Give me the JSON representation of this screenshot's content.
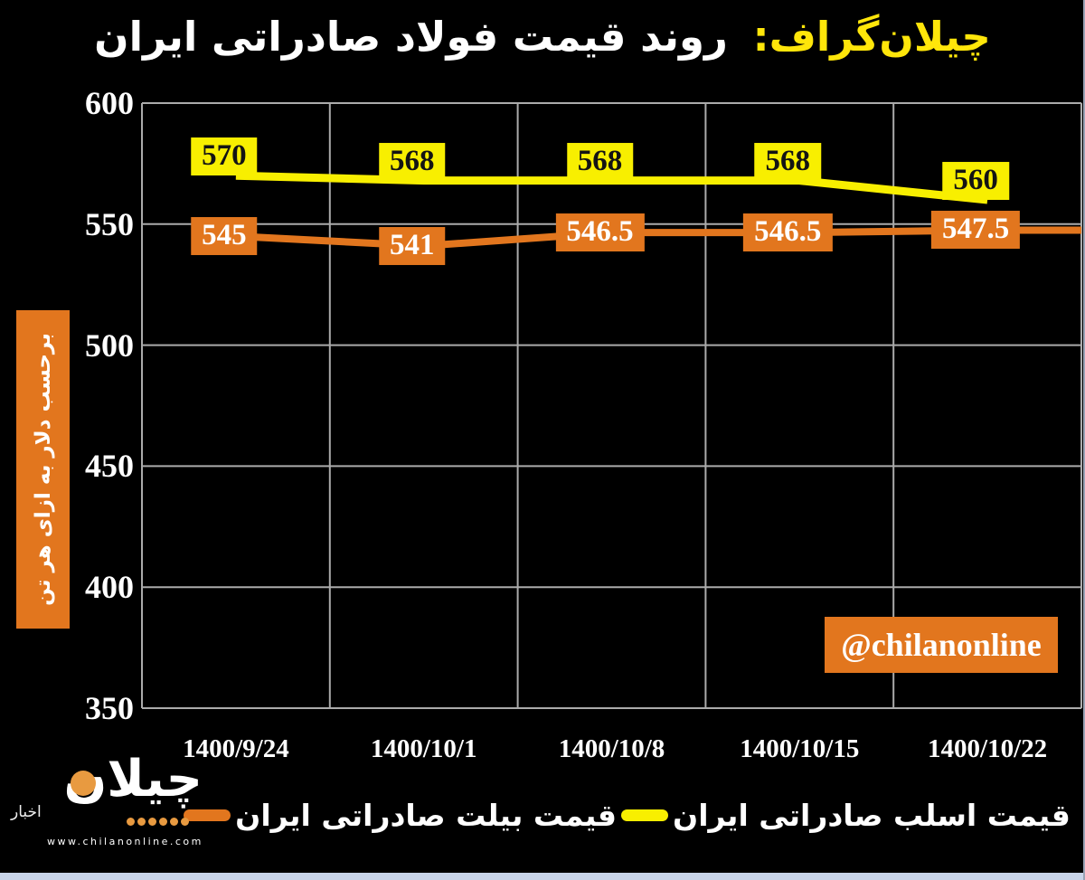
{
  "title": {
    "brand": "چیلان‌گراف:",
    "main": "روند قیمت فولاد صادراتی ایران"
  },
  "watermark": "@chilanonline",
  "logo": {
    "brand": "چیلان",
    "tagline": "اخبار",
    "url": "www.chilanonline.com"
  },
  "chart_data": {
    "type": "line",
    "title": "چیلان‌گراف: روند قیمت فولاد صادراتی ایران",
    "categories": [
      "1400/9/24",
      "1400/10/1",
      "1400/10/8",
      "1400/10/15",
      "1400/10/22"
    ],
    "series": [
      {
        "name": "قیمت اسلب صادراتی ایران",
        "color": "#F8EF00",
        "label_bg": "#F8EF00",
        "label_color": "#141414",
        "values": [
          570,
          568,
          568,
          568,
          560
        ]
      },
      {
        "name": "قیمت بیلت صادراتی ایران",
        "color": "#E2761E",
        "label_bg": "#E2761E",
        "label_color": "#FFFFFF",
        "values": [
          545,
          541,
          546.5,
          546.5,
          547.5
        ]
      }
    ],
    "y_axis": {
      "min": 350,
      "max": 600,
      "step": 50,
      "unit_label": "برحسب دلار به ازای هر تن"
    },
    "x_axis": {
      "labels": [
        "1400/9/24",
        "1400/10/1",
        "1400/10/8",
        "1400/10/15",
        "1400/10/22"
      ]
    },
    "grid": true,
    "legend_position": "bottom",
    "background": "#000000",
    "gridline_color": "#ABABAB"
  }
}
